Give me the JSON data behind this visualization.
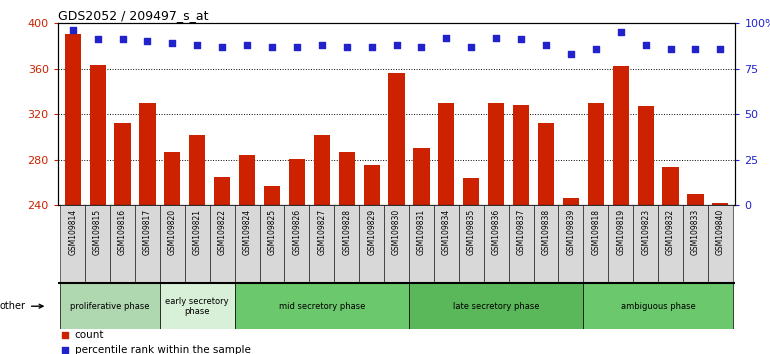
{
  "title": "GDS2052 / 209497_s_at",
  "samples": [
    "GSM109814",
    "GSM109815",
    "GSM109816",
    "GSM109817",
    "GSM109820",
    "GSM109821",
    "GSM109822",
    "GSM109824",
    "GSM109825",
    "GSM109826",
    "GSM109827",
    "GSM109828",
    "GSM109829",
    "GSM109830",
    "GSM109831",
    "GSM109834",
    "GSM109835",
    "GSM109836",
    "GSM109837",
    "GSM109838",
    "GSM109839",
    "GSM109818",
    "GSM109819",
    "GSM109823",
    "GSM109832",
    "GSM109833",
    "GSM109840"
  ],
  "counts": [
    390,
    363,
    312,
    330,
    287,
    302,
    265,
    284,
    257,
    281,
    302,
    287,
    275,
    356,
    290,
    330,
    264,
    330,
    328,
    312,
    246,
    330,
    362,
    327,
    274,
    250,
    242
  ],
  "percentile": [
    96,
    91,
    91,
    90,
    89,
    88,
    87,
    88,
    87,
    87,
    88,
    87,
    87,
    88,
    87,
    92,
    87,
    92,
    91,
    88,
    83,
    86,
    95,
    88,
    86,
    86,
    86
  ],
  "phases": [
    {
      "label": "proliferative phase",
      "start": 0,
      "end": 4,
      "color": "#b0d8b0"
    },
    {
      "label": "early secretory\nphase",
      "start": 4,
      "end": 7,
      "color": "#d8f0d8"
    },
    {
      "label": "mid secretory phase",
      "start": 7,
      "end": 14,
      "color": "#6cc86c"
    },
    {
      "label": "late secretory phase",
      "start": 14,
      "end": 21,
      "color": "#5ab85a"
    },
    {
      "label": "ambiguous phase",
      "start": 21,
      "end": 27,
      "color": "#6cc86c"
    }
  ],
  "count_color": "#cc2200",
  "percentile_color": "#2222cc",
  "ylim_left": [
    240,
    400
  ],
  "ylim_right": [
    0,
    100
  ],
  "yticks_left": [
    240,
    280,
    320,
    360,
    400
  ],
  "yticks_right": [
    0,
    25,
    50,
    75,
    100
  ],
  "background_color": "#ffffff",
  "tickbox_color": "#d8d8d8",
  "other_label": "other"
}
